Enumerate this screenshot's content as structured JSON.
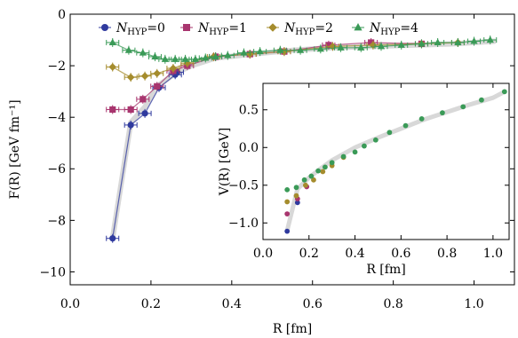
{
  "chart_data": [
    {
      "type": "scatter",
      "xlabel": "R [fm]",
      "ylabel": "F(R) [GeV fm⁻¹]",
      "xlim": [
        0.0,
        1.1
      ],
      "ylim": [
        -10.5,
        0.0
      ],
      "xticks": [
        "0.0",
        "0.2",
        "0.4",
        "0.6",
        "0.8",
        "1.0"
      ],
      "yticks": [
        "0",
        "−2",
        "−4",
        "−6",
        "−8",
        "−10"
      ],
      "legend": "top, horizontal",
      "grid": false,
      "band": {
        "color": "#d8d8d8",
        "x": [
          0.105,
          0.15,
          0.185,
          0.215,
          0.26,
          0.3,
          0.36,
          0.45,
          0.55,
          0.65,
          0.75,
          0.85,
          0.95,
          1.05
        ],
        "y": [
          -8.7,
          -4.2,
          -3.6,
          -2.8,
          -2.3,
          -2.0,
          -1.7,
          -1.55,
          -1.4,
          -1.3,
          -1.25,
          -1.2,
          -1.15,
          -1.05
        ]
      },
      "series": [
        {
          "name": "N_HYP=0",
          "label_main": "N",
          "label_sub": "HYP",
          "label_tail": "=0",
          "color": "#2f3a9e",
          "marker": "circle",
          "x": [
            0.105,
            0.15,
            0.185,
            0.22,
            0.26,
            0.265
          ],
          "y": [
            -8.7,
            -4.3,
            -3.85,
            -2.85,
            -2.35,
            -2.25
          ]
        },
        {
          "name": "N_HYP=1",
          "label_main": "N",
          "label_sub": "HYP",
          "label_tail": "=1",
          "color": "#a8356e",
          "marker": "square",
          "x": [
            0.105,
            0.15,
            0.18,
            0.215,
            0.255,
            0.29,
            0.36,
            0.445,
            0.53,
            0.64,
            0.745,
            0.87
          ],
          "y": [
            -3.7,
            -3.7,
            -3.3,
            -2.8,
            -2.2,
            -2.0,
            -1.65,
            -1.55,
            -1.45,
            -1.2,
            -1.1,
            -1.15
          ]
        },
        {
          "name": "N_HYP=2",
          "label_main": "N",
          "label_sub": "HYP",
          "label_tail": "=2",
          "color": "#a58c2d",
          "marker": "diamond",
          "x": [
            0.105,
            0.15,
            0.185,
            0.215,
            0.255,
            0.29,
            0.355,
            0.445,
            0.53,
            0.65,
            0.75,
            0.87,
            0.96
          ],
          "y": [
            -2.05,
            -2.45,
            -2.4,
            -2.3,
            -2.1,
            -1.9,
            -1.65,
            -1.55,
            -1.45,
            -1.25,
            -1.2,
            -1.15,
            -1.1
          ]
        },
        {
          "name": "N_HYP=4",
          "label_main": "N",
          "label_sub": "HYP",
          "label_tail": "=4",
          "color": "#3a9a57",
          "marker": "triangle",
          "x": [
            0.105,
            0.145,
            0.18,
            0.21,
            0.235,
            0.26,
            0.285,
            0.31,
            0.335,
            0.36,
            0.39,
            0.43,
            0.47,
            0.52,
            0.57,
            0.62,
            0.67,
            0.72,
            0.77,
            0.82,
            0.87,
            0.91,
            0.96,
            1.0,
            1.04
          ],
          "y": [
            -1.1,
            -1.4,
            -1.5,
            -1.65,
            -1.75,
            -1.75,
            -1.75,
            -1.75,
            -1.7,
            -1.65,
            -1.6,
            -1.5,
            -1.45,
            -1.4,
            -1.4,
            -1.35,
            -1.3,
            -1.3,
            -1.25,
            -1.2,
            -1.15,
            -1.1,
            -1.1,
            -1.05,
            -1.0
          ]
        }
      ]
    },
    {
      "type": "scatter",
      "xlabel": "R [fm]",
      "ylabel": "V(R) [GeV]",
      "xlim": [
        0.0,
        1.07
      ],
      "ylim": [
        -1.22,
        0.85
      ],
      "xticks": [
        "0.0",
        "0.2",
        "0.4",
        "0.6",
        "0.8",
        "1.0"
      ],
      "yticks": [
        "0.5",
        "0.0",
        "−0.5",
        "−1.0"
      ],
      "grid": false,
      "band": {
        "color": "#d8d8d8",
        "x": [
          0.105,
          0.15,
          0.2,
          0.25,
          0.3,
          0.4,
          0.5,
          0.6,
          0.7,
          0.8,
          0.9,
          1.0,
          1.05
        ],
        "y": [
          -1.1,
          -0.55,
          -0.4,
          -0.28,
          -0.17,
          0.0,
          0.13,
          0.25,
          0.37,
          0.47,
          0.57,
          0.66,
          0.74
        ]
      },
      "series": [
        {
          "name": "N_HYP=0",
          "color": "#2f3a9e",
          "marker": "circle",
          "x": [
            0.105,
            0.15
          ],
          "y": [
            -1.11,
            -0.73
          ]
        },
        {
          "name": "N_HYP=1",
          "color": "#a8356e",
          "marker": "circle",
          "x": [
            0.105,
            0.15,
            0.19
          ],
          "y": [
            -0.88,
            -0.68,
            -0.52
          ]
        },
        {
          "name": "N_HYP=2",
          "color": "#a58c2d",
          "marker": "circle",
          "x": [
            0.105,
            0.145,
            0.185,
            0.22,
            0.26,
            0.3,
            0.35
          ],
          "y": [
            -0.72,
            -0.64,
            -0.5,
            -0.43,
            -0.32,
            -0.24,
            -0.13
          ]
        },
        {
          "name": "N_HYP=4",
          "color": "#3a9a57",
          "marker": "circle",
          "x": [
            0.105,
            0.145,
            0.18,
            0.21,
            0.24,
            0.27,
            0.3,
            0.35,
            0.4,
            0.44,
            0.49,
            0.55,
            0.62,
            0.69,
            0.78,
            0.87,
            0.95,
            1.05
          ],
          "y": [
            -0.56,
            -0.53,
            -0.43,
            -0.38,
            -0.31,
            -0.26,
            -0.2,
            -0.12,
            -0.06,
            0.02,
            0.1,
            0.2,
            0.29,
            0.38,
            0.46,
            0.54,
            0.63,
            0.74
          ]
        }
      ]
    }
  ]
}
